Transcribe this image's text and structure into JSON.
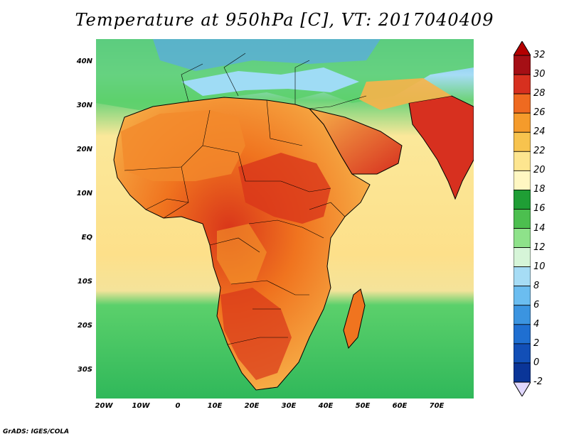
{
  "title": "Temperature at 950hPa [C], VT: 2017040409",
  "credit": "GrADS: IGES/COLA",
  "lat_labels": [
    "40N",
    "30N",
    "20N",
    "10N",
    "EQ",
    "10S",
    "20S",
    "30S"
  ],
  "lon_labels": [
    "20W",
    "10W",
    "0",
    "10E",
    "20E",
    "30E",
    "40E",
    "50E",
    "60E",
    "70E"
  ],
  "colorbar": {
    "labels": [
      "32",
      "30",
      "28",
      "26",
      "24",
      "22",
      "20",
      "18",
      "16",
      "14",
      "12",
      "10",
      "8",
      "6",
      "4",
      "2",
      "0",
      "-2"
    ],
    "colors": [
      "#a50f15",
      "#d7301f",
      "#ef6a20",
      "#f59b2b",
      "#f7c34e",
      "#fde58f",
      "#fff7c2",
      "#1f9e35",
      "#4cbf4f",
      "#8ee28a",
      "#d6f5d8",
      "#a6dcf5",
      "#6bbdf0",
      "#3b94e0",
      "#1f6fd1",
      "#124fb7",
      "#0a3598",
      "#07237a"
    ],
    "under_color": "#e1d8ff",
    "over_color": "#b40000"
  },
  "map": {
    "ocean_south_color": "#38c05a",
    "ocean_equatorial_color": "#fde08a",
    "mediterranean_color": "#7fd0f7",
    "sahara_color": "#f28a2c",
    "hotspot_color": "#d9361a"
  }
}
